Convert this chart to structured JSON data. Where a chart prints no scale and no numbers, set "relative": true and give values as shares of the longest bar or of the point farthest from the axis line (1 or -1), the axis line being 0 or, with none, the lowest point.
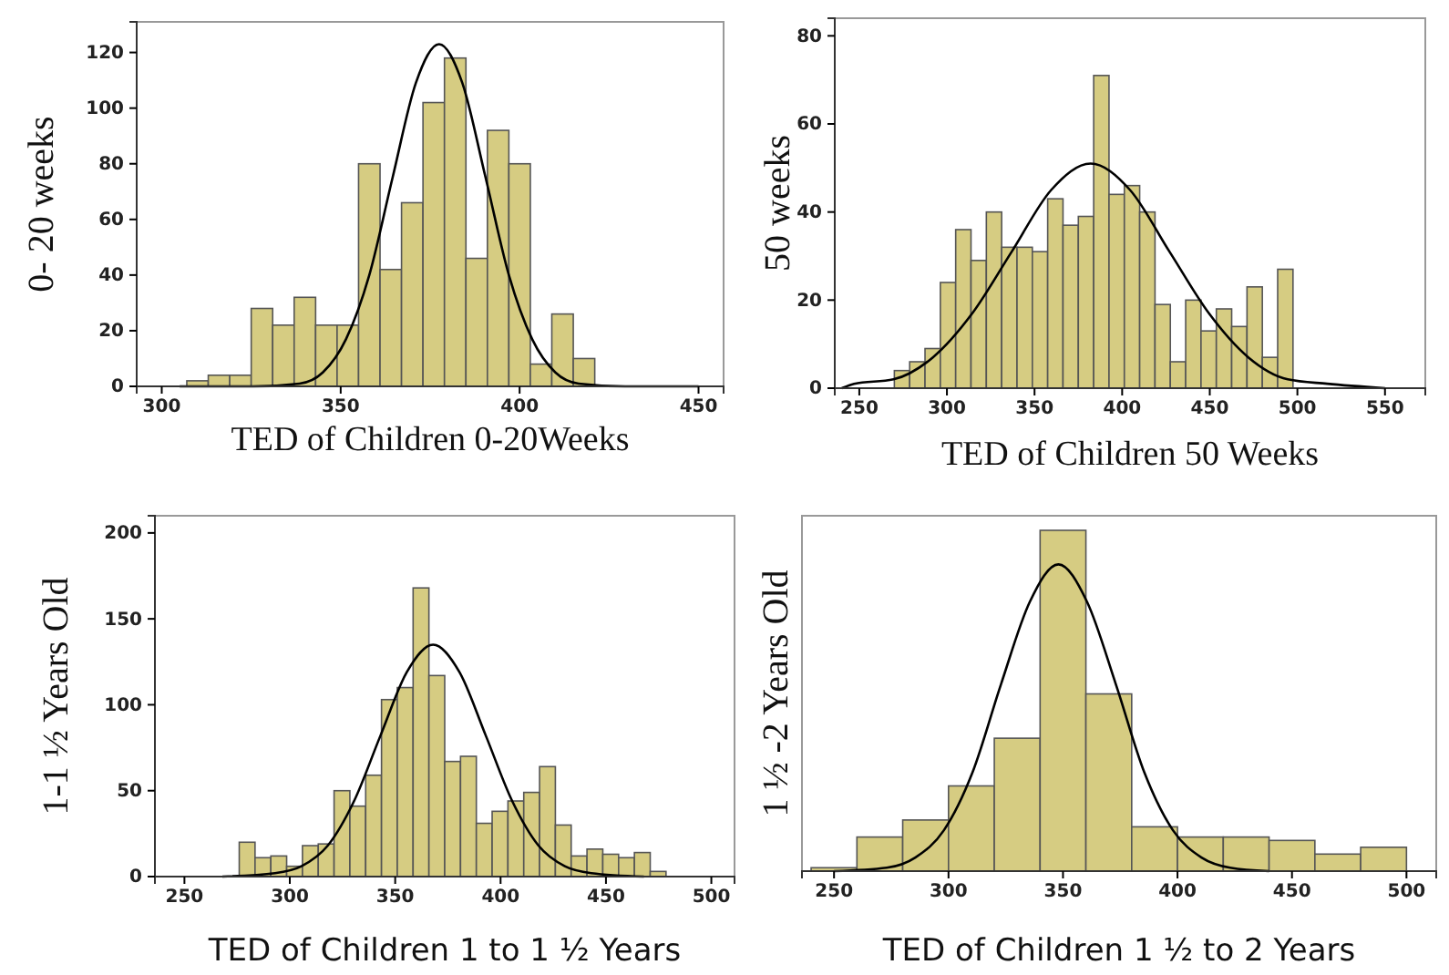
{
  "chart_data": [
    {
      "type": "histogram",
      "xlabel": "TED of Children  0-20Weeks",
      "ylabel": "0- 20 weeks",
      "color": "#d6cc82",
      "grid": false,
      "bins": [
        307,
        313,
        319,
        325,
        331,
        337,
        343,
        349,
        355,
        361,
        367,
        373,
        379,
        385,
        391,
        397,
        403,
        409,
        415,
        421
      ],
      "values": [
        2,
        4,
        4,
        28,
        22,
        32,
        22,
        22,
        80,
        42,
        66,
        102,
        118,
        46,
        92,
        80,
        8,
        26,
        10
      ],
      "series": [
        {
          "type": "line",
          "color": "#000000",
          "x": [
            305,
            325.5,
            338.5,
            345,
            351.5,
            358,
            364.5,
            371,
            377.5,
            384,
            390.5,
            397,
            403.5,
            410,
            416.5,
            429.5,
            450
          ],
          "values": [
            0,
            0,
            1,
            5,
            17,
            40,
            75,
            109,
            123,
            109,
            75,
            40,
            17,
            5,
            1,
            0,
            0
          ]
        }
      ],
      "xlim": [
        293,
        457
      ],
      "ylim": [
        0,
        131
      ],
      "xticks": [
        300,
        350,
        400,
        450
      ],
      "yticks": [
        0,
        20,
        40,
        60,
        80,
        100,
        120
      ]
    },
    {
      "type": "histogram",
      "xlabel": "TED of Children  50 Weeks",
      "ylabel": "50 weeks",
      "color": "#d6cc82",
      "grid": false,
      "bins": [
        270,
        278.75,
        287.5,
        296.25,
        305,
        313.75,
        322.5,
        331.25,
        340,
        348.75,
        357.5,
        366.25,
        375,
        383.75,
        392.5,
        401.25,
        410,
        418.75,
        427.5,
        436.25,
        445,
        453.75,
        462.5,
        471.25,
        480,
        488.75,
        497.5
      ],
      "values": [
        4,
        6,
        9,
        24,
        36,
        29,
        40,
        32,
        32,
        31,
        43,
        37,
        39,
        71,
        44,
        46,
        40,
        19,
        6,
        20,
        13,
        18,
        14,
        23,
        7,
        27
      ],
      "series": [
        {
          "type": "line",
          "color": "#000000",
          "x": [
            240,
            247,
            269.5,
            292,
            314.5,
            337,
            359.5,
            382,
            404.5,
            427,
            449.5,
            472,
            494.5,
            517,
            550
          ],
          "values": [
            0,
            1,
            2,
            7,
            17,
            31,
            45,
            51,
            45,
            31,
            17,
            7,
            2,
            1,
            0
          ]
        }
      ],
      "xlim": [
        236,
        573
      ],
      "ylim": [
        0,
        84
      ],
      "xticks": [
        250,
        300,
        350,
        400,
        450,
        500,
        550
      ],
      "yticks": [
        0,
        20,
        40,
        60,
        80
      ]
    },
    {
      "type": "histogram",
      "xlabel": "TED of Children 1 to 1 ½ Years",
      "ylabel": "1-1 ½  Years Old",
      "color": "#d6cc82",
      "grid": false,
      "bins": [
        276,
        283.5,
        291,
        298.5,
        306,
        313.5,
        321,
        328.5,
        336,
        343.5,
        351,
        358.5,
        366,
        373.5,
        381,
        388.5,
        396,
        403.5,
        411,
        418.5,
        426,
        433.5,
        441,
        448.5,
        456,
        463.5,
        471,
        478.5
      ],
      "values": [
        20,
        11,
        12,
        6,
        18,
        19,
        50,
        41,
        59,
        103,
        110,
        168,
        117,
        67,
        70,
        31,
        38,
        44,
        49,
        64,
        30,
        12,
        16,
        13,
        11,
        14,
        3
      ],
      "series": [
        {
          "type": "line",
          "color": "#000000",
          "x": [
            268,
            293,
            305.5,
            318,
            330.5,
            343,
            355.5,
            368,
            380.5,
            393,
            405.5,
            418,
            430.5,
            443,
            468
          ],
          "values": [
            0,
            2,
            6,
            18,
            44,
            82,
            119,
            135,
            119,
            82,
            44,
            18,
            6,
            2,
            0
          ]
        }
      ],
      "xlim": [
        236,
        511
      ],
      "ylim": [
        0,
        210
      ],
      "xticks": [
        250,
        300,
        350,
        400,
        450,
        500
      ],
      "yticks": [
        0,
        50,
        100,
        150,
        200
      ]
    },
    {
      "type": "histogram",
      "xlabel": "TED of Children  1 ½ to 2 Years",
      "ylabel": "1 ½ -2 Years Old",
      "color": "#d6cc82",
      "grid": false,
      "relative": true,
      "bins": [
        240,
        260,
        280,
        300,
        320,
        340,
        360,
        380,
        400,
        420,
        440,
        460,
        480,
        500
      ],
      "values": [
        0.01,
        0.1,
        0.15,
        0.25,
        0.39,
        1,
        0.52,
        0.13,
        0.1,
        0.1,
        0.09,
        0.05,
        0.07
      ],
      "series": [
        {
          "type": "line",
          "color": "#000000",
          "x": [
            250,
            273,
            285.5,
            298,
            310.5,
            323,
            335.5,
            348,
            360.5,
            373,
            385.5,
            398,
            410.5,
            423,
            440
          ],
          "values": [
            0,
            0.01,
            0.04,
            0.12,
            0.29,
            0.55,
            0.79,
            0.9,
            0.79,
            0.55,
            0.29,
            0.12,
            0.04,
            0.01,
            0
          ]
        }
      ],
      "xlim": [
        236,
        513
      ],
      "xticks": [
        250,
        300,
        350,
        400,
        450,
        500
      ]
    }
  ]
}
